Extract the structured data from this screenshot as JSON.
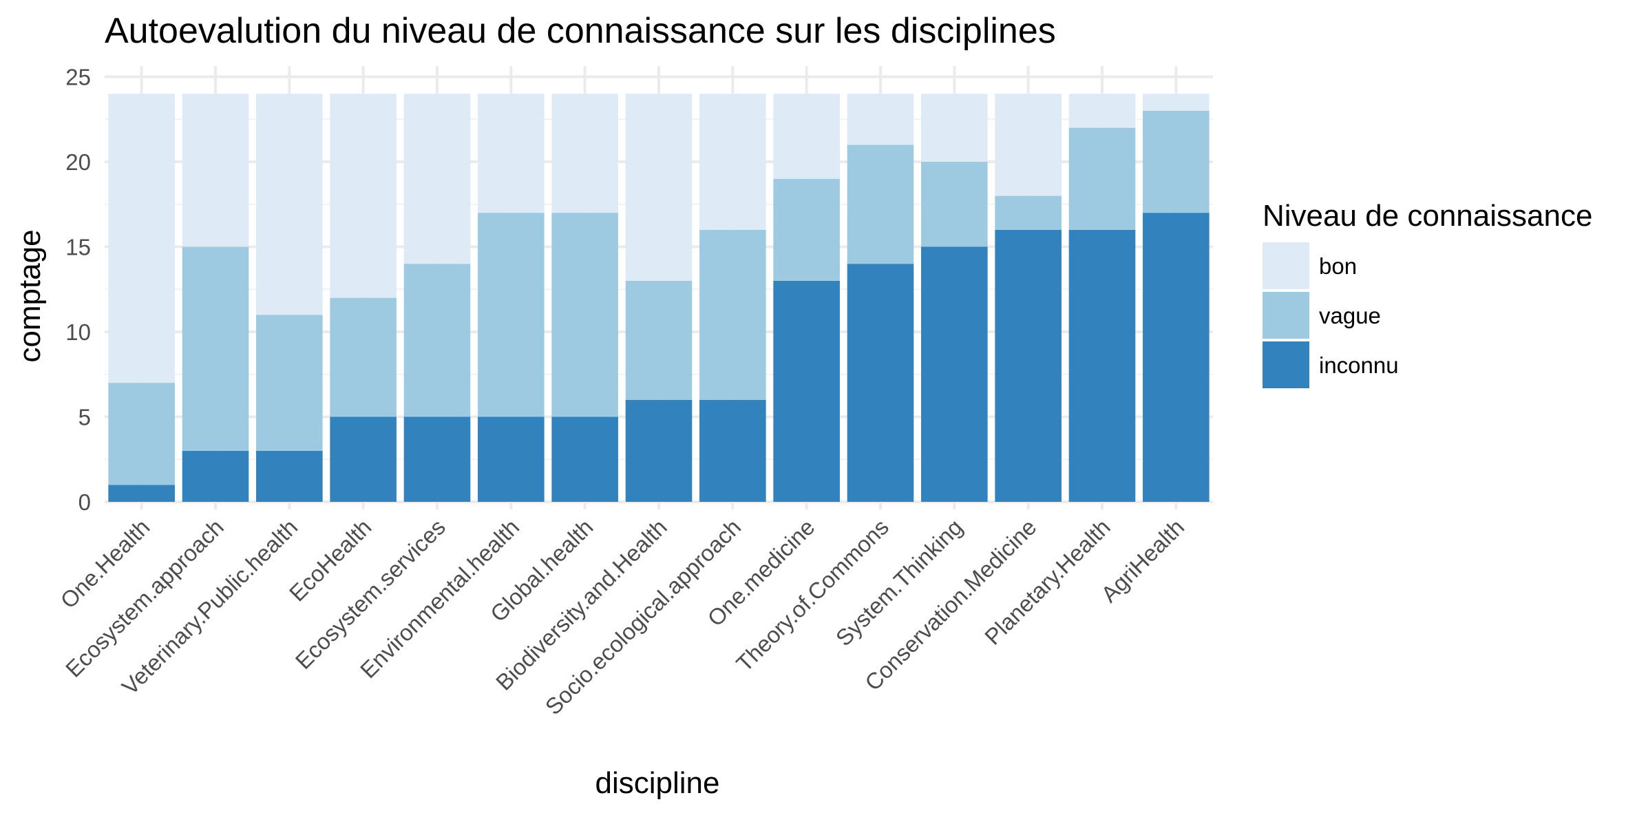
{
  "chart_data": {
    "type": "bar",
    "stacked": true,
    "title": "Autoevalution du niveau de connaissance sur les disciplines",
    "xlabel": "discipline",
    "ylabel": "comptage",
    "ylim": [
      0,
      25
    ],
    "yticks": [
      0,
      5,
      10,
      15,
      20,
      25
    ],
    "grid": true,
    "legend_position": "right",
    "legend_title": "Niveau de connaissance",
    "categories": [
      "One.Health",
      "Ecosystem.approach",
      "Veterinary.Public.health",
      "EcoHealth",
      "Ecosystem.services",
      "Environmental.health",
      "Global.health",
      "Biodiversity.and.Health",
      "Socio.ecological.approach",
      "One.medicine",
      "Theory.of.Commons",
      "System.Thinking",
      "Conservation.Medicine",
      "Planetary.Health",
      "AgriHealth"
    ],
    "series": [
      {
        "name": "inconnu",
        "color": "#3182bd",
        "values": [
          1,
          3,
          3,
          5,
          5,
          5,
          5,
          6,
          6,
          13,
          14,
          15,
          16,
          16,
          17
        ]
      },
      {
        "name": "vague",
        "color": "#9ecae1",
        "values": [
          6,
          12,
          8,
          7,
          9,
          12,
          12,
          7,
          10,
          6,
          7,
          5,
          2,
          6,
          6
        ]
      },
      {
        "name": "bon",
        "color": "#deebf7",
        "values": [
          17,
          9,
          13,
          12,
          10,
          7,
          7,
          11,
          8,
          5,
          3,
          4,
          6,
          2,
          1
        ]
      }
    ],
    "legend_order": [
      "bon",
      "vague",
      "inconnu"
    ]
  }
}
